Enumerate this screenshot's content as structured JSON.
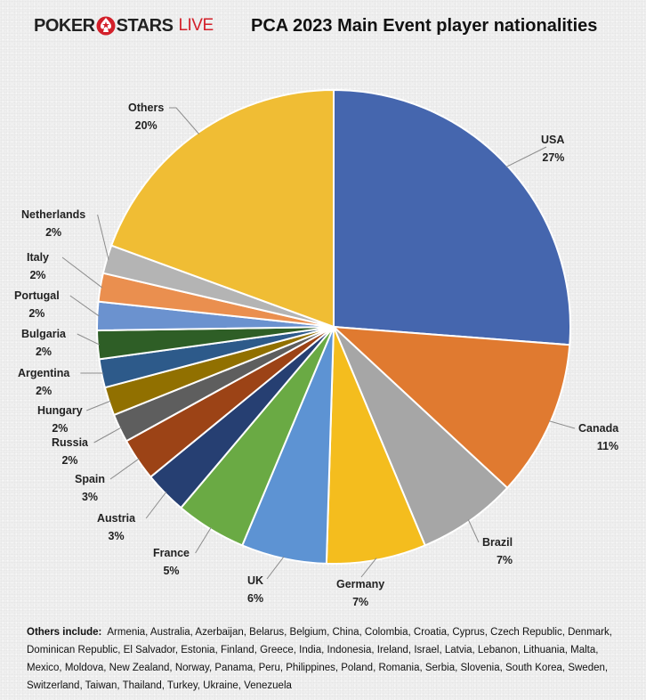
{
  "logo": {
    "part1": "POKER",
    "part2": "STARS",
    "part3": "LIVE",
    "icon": "spade-star-icon",
    "colors": {
      "dark": "#222222",
      "red": "#d3202a"
    }
  },
  "chart_data": {
    "type": "pie",
    "title": "PCA 2023 Main Event player nationalities",
    "start_angle_deg": 0,
    "direction": "clockwise",
    "slices": [
      {
        "label": "USA",
        "value": 27,
        "display": "27%",
        "color": "#4566ae"
      },
      {
        "label": "Canada",
        "value": 11,
        "display": "11%",
        "color": "#e07a30"
      },
      {
        "label": "Brazil",
        "value": 7,
        "display": "7%",
        "color": "#a6a6a6"
      },
      {
        "label": "Germany",
        "value": 7,
        "display": "7%",
        "color": "#f4bd1e"
      },
      {
        "label": "UK",
        "value": 6,
        "display": "6%",
        "color": "#5d93d3"
      },
      {
        "label": "France",
        "value": 5,
        "display": "5%",
        "color": "#6aaa44"
      },
      {
        "label": "Austria",
        "value": 3,
        "display": "3%",
        "color": "#263f72"
      },
      {
        "label": "Spain",
        "value": 3,
        "display": "3%",
        "color": "#9c4316"
      },
      {
        "label": "Russia",
        "value": 2,
        "display": "2%",
        "color": "#5e5e5e"
      },
      {
        "label": "Hungary",
        "value": 2,
        "display": "2%",
        "color": "#917000"
      },
      {
        "label": "Argentina",
        "value": 2,
        "display": "2%",
        "color": "#2d5a8a"
      },
      {
        "label": "Bulgaria",
        "value": 2,
        "display": "2%",
        "color": "#2e5e26"
      },
      {
        "label": "Portugal",
        "value": 2,
        "display": "2%",
        "color": "#6b92cf"
      },
      {
        "label": "Italy",
        "value": 2,
        "display": "2%",
        "color": "#ea8f4f"
      },
      {
        "label": "Netherlands",
        "value": 2,
        "display": "2%",
        "color": "#b4b4b4"
      },
      {
        "label": "Others",
        "value": 20,
        "display": "20%",
        "color": "#f0bd34"
      }
    ]
  },
  "footnote": {
    "heading": "Others include:",
    "text": "Armenia, Australia, Azerbaijan, Belarus, Belgium, China, Colombia, Croatia, Cyprus, Czech Republic, Denmark, Dominican Republic, El Salvador, Estonia, Finland, Greece, India, Indonesia, Ireland, Israel, Latvia, Lebanon, Lithuania, Malta, Mexico, Moldova, New Zealand, Norway, Panama, Peru, Philippines, Poland, Romania, Serbia, Slovenia, South Korea, Sweden, Switzerland, Taiwan, Thailand, Turkey, Ukraine, Venezuela"
  }
}
